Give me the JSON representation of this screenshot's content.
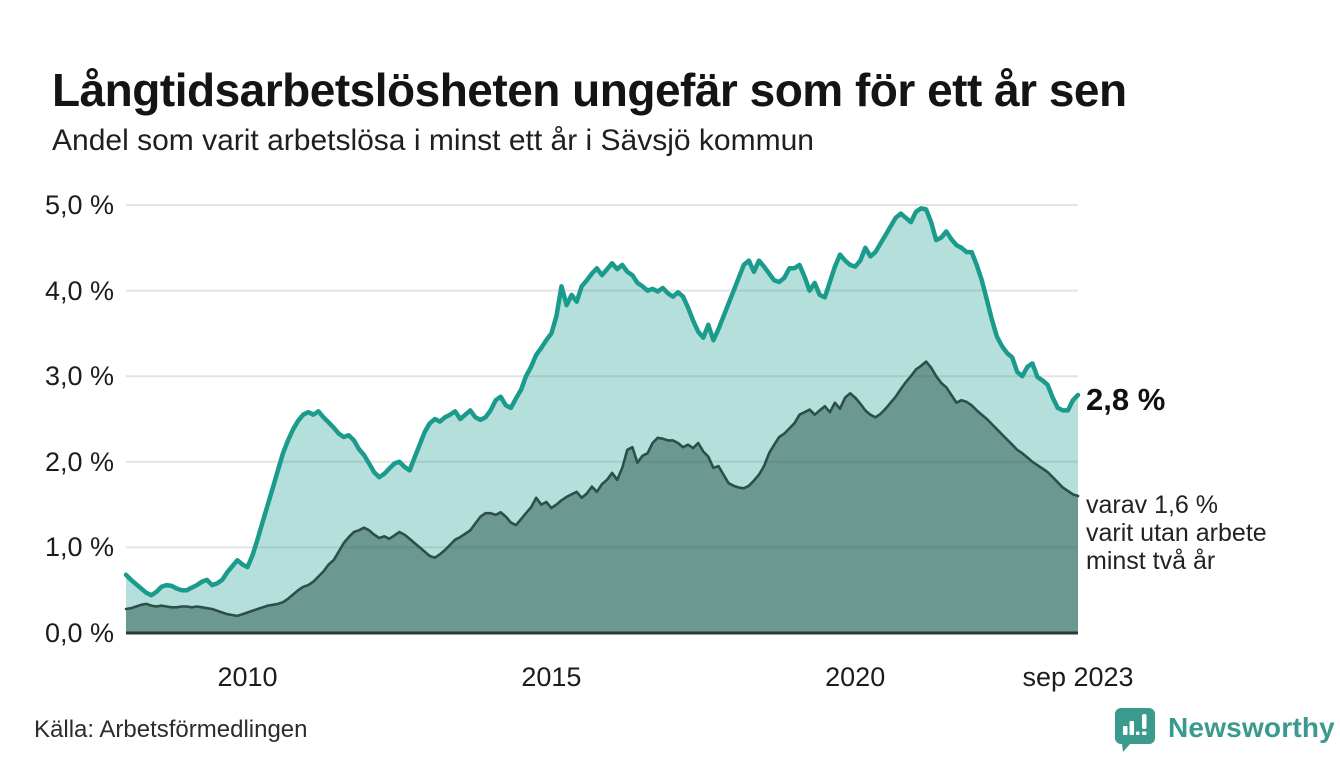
{
  "header": {
    "title": "Långtidsarbetslösheten ungefär som för ett år sen",
    "subtitle": "Andel som varit arbetslösa i minst ett år i Sävsjö kommun"
  },
  "annotations": {
    "latest_total": "2,8 %",
    "note_lines": [
      "varav 1,6 %",
      "varit utan arbete",
      "minst två år"
    ]
  },
  "source": {
    "label": "Källa: Arbetsförmedlingen"
  },
  "branding": {
    "wordmark": "Newsworthy",
    "logo_color": "#3a9a8e"
  },
  "colors": {
    "line_total": "#1a9b8c",
    "fill_total": "rgba(25,154,139,0.32)",
    "line_two_years": "#2c4f49",
    "fill_two_years": "rgba(46,93,85,0.55)",
    "gridline": "#e3e3e3",
    "baseline": "#2b3a38",
    "text": "#1a1a1a"
  },
  "chart_data": {
    "type": "area",
    "title": "Långtidsarbetslösheten ungefär som för ett år sen",
    "subtitle": "Andel som varit arbetslösa i minst ett år i Sävsjö kommun",
    "unit": "%",
    "frequency": "monthly",
    "x_start": "2008-01",
    "x_end": "2023-09",
    "ylim": [
      0,
      5
    ],
    "grid": true,
    "legend_position": "right-annotations",
    "y_ticks": [
      {
        "value": 5,
        "label": "5,0 %"
      },
      {
        "value": 4,
        "label": "4,0 %"
      },
      {
        "value": 3,
        "label": "3,0 %"
      },
      {
        "value": 2,
        "label": "2,0 %"
      },
      {
        "value": 1,
        "label": "1,0 %"
      },
      {
        "value": 0,
        "label": "0,0 %"
      }
    ],
    "x_ticks": [
      {
        "month_index": 24,
        "label": "2010"
      },
      {
        "month_index": 84,
        "label": "2015"
      },
      {
        "month_index": 144,
        "label": "2020"
      },
      {
        "month_index": 188,
        "label": "sep 2023"
      }
    ],
    "series": [
      {
        "name": "Arbetslösa minst ett år",
        "latest_value": 2.8,
        "values": [
          0.68,
          0.62,
          0.57,
          0.52,
          0.47,
          0.44,
          0.48,
          0.54,
          0.56,
          0.55,
          0.52,
          0.5,
          0.5,
          0.53,
          0.56,
          0.6,
          0.62,
          0.56,
          0.58,
          0.62,
          0.71,
          0.78,
          0.85,
          0.8,
          0.77,
          0.91,
          1.1,
          1.3,
          1.5,
          1.7,
          1.9,
          2.1,
          2.25,
          2.38,
          2.48,
          2.55,
          2.58,
          2.55,
          2.59,
          2.52,
          2.46,
          2.4,
          2.33,
          2.29,
          2.31,
          2.25,
          2.15,
          2.08,
          1.98,
          1.88,
          1.82,
          1.86,
          1.92,
          1.98,
          2.0,
          1.94,
          1.9,
          2.05,
          2.2,
          2.35,
          2.45,
          2.5,
          2.47,
          2.52,
          2.55,
          2.59,
          2.5,
          2.55,
          2.6,
          2.52,
          2.49,
          2.52,
          2.6,
          2.72,
          2.76,
          2.66,
          2.63,
          2.74,
          2.84,
          3.0,
          3.11,
          3.25,
          3.33,
          3.42,
          3.5,
          3.7,
          4.05,
          3.83,
          3.95,
          3.87,
          4.05,
          4.12,
          4.2,
          4.26,
          4.18,
          4.25,
          4.32,
          4.25,
          4.3,
          4.22,
          4.18,
          4.09,
          4.05,
          4.0,
          4.02,
          3.99,
          4.03,
          3.97,
          3.93,
          3.98,
          3.93,
          3.8,
          3.65,
          3.52,
          3.45,
          3.6,
          3.42,
          3.55,
          3.7,
          3.85,
          4.0,
          4.15,
          4.3,
          4.35,
          4.22,
          4.35,
          4.28,
          4.2,
          4.12,
          4.1,
          4.15,
          4.26,
          4.26,
          4.3,
          4.16,
          4.0,
          4.09,
          3.95,
          3.92,
          4.1,
          4.28,
          4.42,
          4.35,
          4.3,
          4.28,
          4.35,
          4.5,
          4.4,
          4.45,
          4.55,
          4.65,
          4.75,
          4.85,
          4.9,
          4.85,
          4.8,
          4.92,
          4.96,
          4.95,
          4.8,
          4.59,
          4.62,
          4.69,
          4.6,
          4.53,
          4.5,
          4.45,
          4.45,
          4.3,
          4.12,
          3.89,
          3.66,
          3.46,
          3.35,
          3.27,
          3.22,
          3.05,
          3.0,
          3.11,
          3.15,
          2.99,
          2.95,
          2.9,
          2.75,
          2.63,
          2.6,
          2.6,
          2.72,
          2.78
        ]
      },
      {
        "name": "Arbetslösa minst två år",
        "latest_value": 1.6,
        "values": [
          0.28,
          0.29,
          0.31,
          0.33,
          0.34,
          0.32,
          0.31,
          0.32,
          0.31,
          0.3,
          0.3,
          0.31,
          0.31,
          0.3,
          0.31,
          0.3,
          0.29,
          0.28,
          0.26,
          0.24,
          0.22,
          0.21,
          0.2,
          0.22,
          0.24,
          0.26,
          0.28,
          0.3,
          0.32,
          0.33,
          0.34,
          0.36,
          0.4,
          0.45,
          0.5,
          0.54,
          0.56,
          0.6,
          0.66,
          0.72,
          0.8,
          0.85,
          0.95,
          1.05,
          1.12,
          1.18,
          1.2,
          1.23,
          1.2,
          1.15,
          1.11,
          1.13,
          1.1,
          1.14,
          1.18,
          1.15,
          1.1,
          1.05,
          1.0,
          0.95,
          0.9,
          0.88,
          0.92,
          0.97,
          1.03,
          1.09,
          1.12,
          1.16,
          1.2,
          1.28,
          1.36,
          1.4,
          1.4,
          1.38,
          1.41,
          1.36,
          1.29,
          1.26,
          1.33,
          1.4,
          1.47,
          1.58,
          1.5,
          1.53,
          1.46,
          1.5,
          1.55,
          1.59,
          1.62,
          1.65,
          1.58,
          1.63,
          1.71,
          1.65,
          1.74,
          1.79,
          1.87,
          1.79,
          1.93,
          2.14,
          2.17,
          1.99,
          2.07,
          2.1,
          2.22,
          2.28,
          2.27,
          2.25,
          2.25,
          2.22,
          2.17,
          2.2,
          2.16,
          2.22,
          2.12,
          2.06,
          1.93,
          1.95,
          1.85,
          1.75,
          1.72,
          1.7,
          1.69,
          1.72,
          1.78,
          1.85,
          1.95,
          2.1,
          2.2,
          2.29,
          2.33,
          2.39,
          2.45,
          2.55,
          2.58,
          2.61,
          2.55,
          2.6,
          2.65,
          2.58,
          2.69,
          2.62,
          2.75,
          2.8,
          2.75,
          2.68,
          2.6,
          2.55,
          2.52,
          2.56,
          2.62,
          2.69,
          2.76,
          2.85,
          2.93,
          3.0,
          3.08,
          3.12,
          3.17,
          3.1,
          3.0,
          2.92,
          2.87,
          2.78,
          2.69,
          2.72,
          2.7,
          2.66,
          2.6,
          2.55,
          2.5,
          2.44,
          2.38,
          2.32,
          2.26,
          2.2,
          2.14,
          2.1,
          2.05,
          2.0,
          1.96,
          1.92,
          1.88,
          1.82,
          1.76,
          1.7,
          1.66,
          1.62,
          1.6
        ]
      }
    ]
  }
}
